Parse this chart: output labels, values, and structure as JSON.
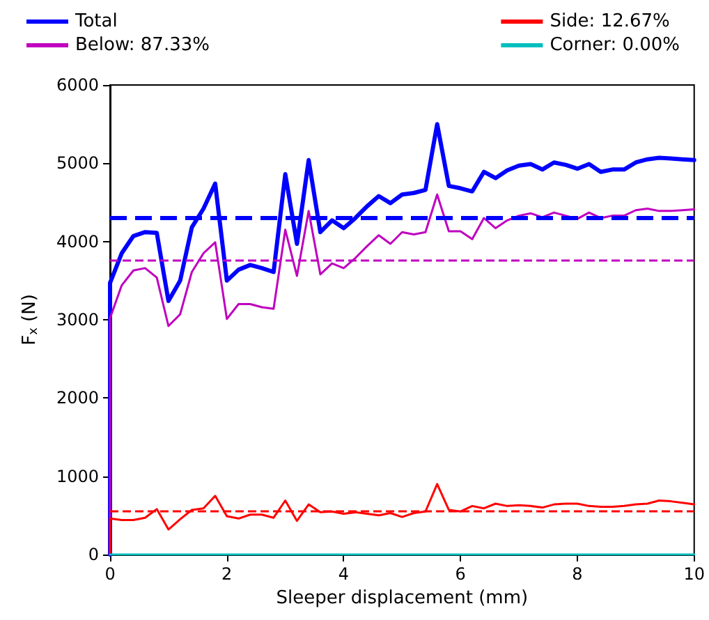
{
  "chart_data": {
    "type": "line",
    "xlabel": "Sleeper displacement (mm)",
    "ylabel": "F$_{x}$ (N)",
    "x": [
      0,
      0,
      0.2,
      0.4,
      0.6,
      0.8,
      1.0,
      1.2,
      1.4,
      1.6,
      1.8,
      2.0,
      2.2,
      2.4,
      2.6,
      2.8,
      3.0,
      3.2,
      3.4,
      3.6,
      3.8,
      4.0,
      4.2,
      4.4,
      4.6,
      4.8,
      5.0,
      5.2,
      5.4,
      5.6,
      5.8,
      6.0,
      6.2,
      6.4,
      6.6,
      6.8,
      7.0,
      7.2,
      7.4,
      7.6,
      7.8,
      8.0,
      8.2,
      8.4,
      8.6,
      8.8,
      9.0,
      9.2,
      9.4,
      9.6,
      9.8,
      10
    ],
    "series": [
      {
        "name": "Total",
        "color": "#0000ff",
        "values": [
          0,
          3470,
          3850,
          4070,
          4120,
          4110,
          3240,
          3500,
          4180,
          4420,
          4740,
          3500,
          3640,
          3700,
          3660,
          3610,
          4860,
          3970,
          5040,
          4120,
          4270,
          4170,
          4300,
          4450,
          4580,
          4490,
          4600,
          4620,
          4660,
          5500,
          4710,
          4680,
          4640,
          4890,
          4810,
          4910,
          4970,
          4990,
          4920,
          5010,
          4980,
          4930,
          4990,
          4890,
          4920,
          4920,
          5010,
          5050,
          5070,
          5060,
          5050,
          5040
        ]
      },
      {
        "name": "Below: 87.33%",
        "color": "#bf00bf",
        "values": [
          0,
          3020,
          3440,
          3630,
          3660,
          3540,
          2920,
          3070,
          3610,
          3850,
          3990,
          3010,
          3200,
          3200,
          3160,
          3140,
          4150,
          3560,
          4390,
          3580,
          3720,
          3660,
          3790,
          3940,
          4080,
          3970,
          4120,
          4090,
          4120,
          4600,
          4130,
          4130,
          4030,
          4300,
          4170,
          4270,
          4330,
          4360,
          4310,
          4370,
          4330,
          4290,
          4370,
          4300,
          4330,
          4330,
          4400,
          4420,
          4390,
          4390,
          4400,
          4410
        ]
      },
      {
        "name": "Side: 12.67%",
        "color": "#ff0000",
        "values": [
          0,
          460,
          440,
          440,
          470,
          580,
          320,
          450,
          570,
          590,
          750,
          490,
          460,
          510,
          510,
          470,
          690,
          430,
          640,
          540,
          550,
          520,
          540,
          520,
          500,
          530,
          480,
          530,
          550,
          900,
          570,
          550,
          620,
          590,
          650,
          620,
          630,
          620,
          600,
          640,
          650,
          650,
          620,
          610,
          610,
          620,
          640,
          650,
          690,
          680,
          660,
          640
        ]
      },
      {
        "name": "Corner: 0.00%",
        "color": "#00bfbf",
        "values": [
          0,
          0,
          0,
          0,
          0,
          0,
          0,
          0,
          0,
          0,
          0,
          0,
          0,
          0,
          0,
          0,
          0,
          0,
          0,
          0,
          0,
          0,
          0,
          0,
          0,
          0,
          0,
          0,
          0,
          0,
          0,
          0,
          0,
          0,
          0,
          0,
          0,
          0,
          0,
          0,
          0,
          0,
          0,
          0,
          0,
          0,
          0,
          0,
          0,
          0,
          0,
          0
        ]
      }
    ],
    "ref_lines": [
      {
        "axis": "y",
        "value": 4300,
        "color": "#0000ff",
        "line_style": "dashed"
      },
      {
        "axis": "y",
        "value": 3760,
        "color": "#bf00bf",
        "line_style": "dashed"
      },
      {
        "axis": "y",
        "value": 550,
        "color": "#ff0000",
        "line_style": "dashed"
      }
    ],
    "xlim": [
      0,
      10
    ],
    "xticks": [
      0,
      2,
      4,
      6,
      8,
      10
    ],
    "ylim": [
      0,
      6000
    ],
    "yticks": [
      0,
      1000,
      2000,
      3000,
      4000,
      5000,
      6000
    ],
    "grid": false,
    "legend": "top",
    "marker": "none",
    "line_style": "solid"
  }
}
